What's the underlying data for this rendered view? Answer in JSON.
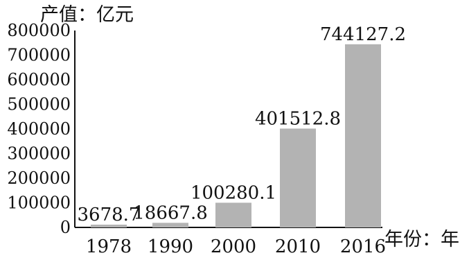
{
  "chart_data": {
    "type": "bar",
    "categories": [
      "1978",
      "1990",
      "2000",
      "2010",
      "2016"
    ],
    "values": [
      3678.7,
      18667.8,
      100280.1,
      401512.8,
      744127.2
    ],
    "data_labels": [
      "3678.7",
      "18667.8",
      "100280.1",
      "401512.8",
      "744127.2"
    ],
    "ylabel": "产值：亿元",
    "xlabel": "年份：年",
    "ylim": [
      0,
      800000
    ],
    "yticks": [
      "0",
      "100000",
      "200000",
      "300000",
      "400000",
      "500000",
      "600000",
      "700000",
      "800000"
    ],
    "grid": false,
    "bar_color": "#b3b3b3"
  }
}
